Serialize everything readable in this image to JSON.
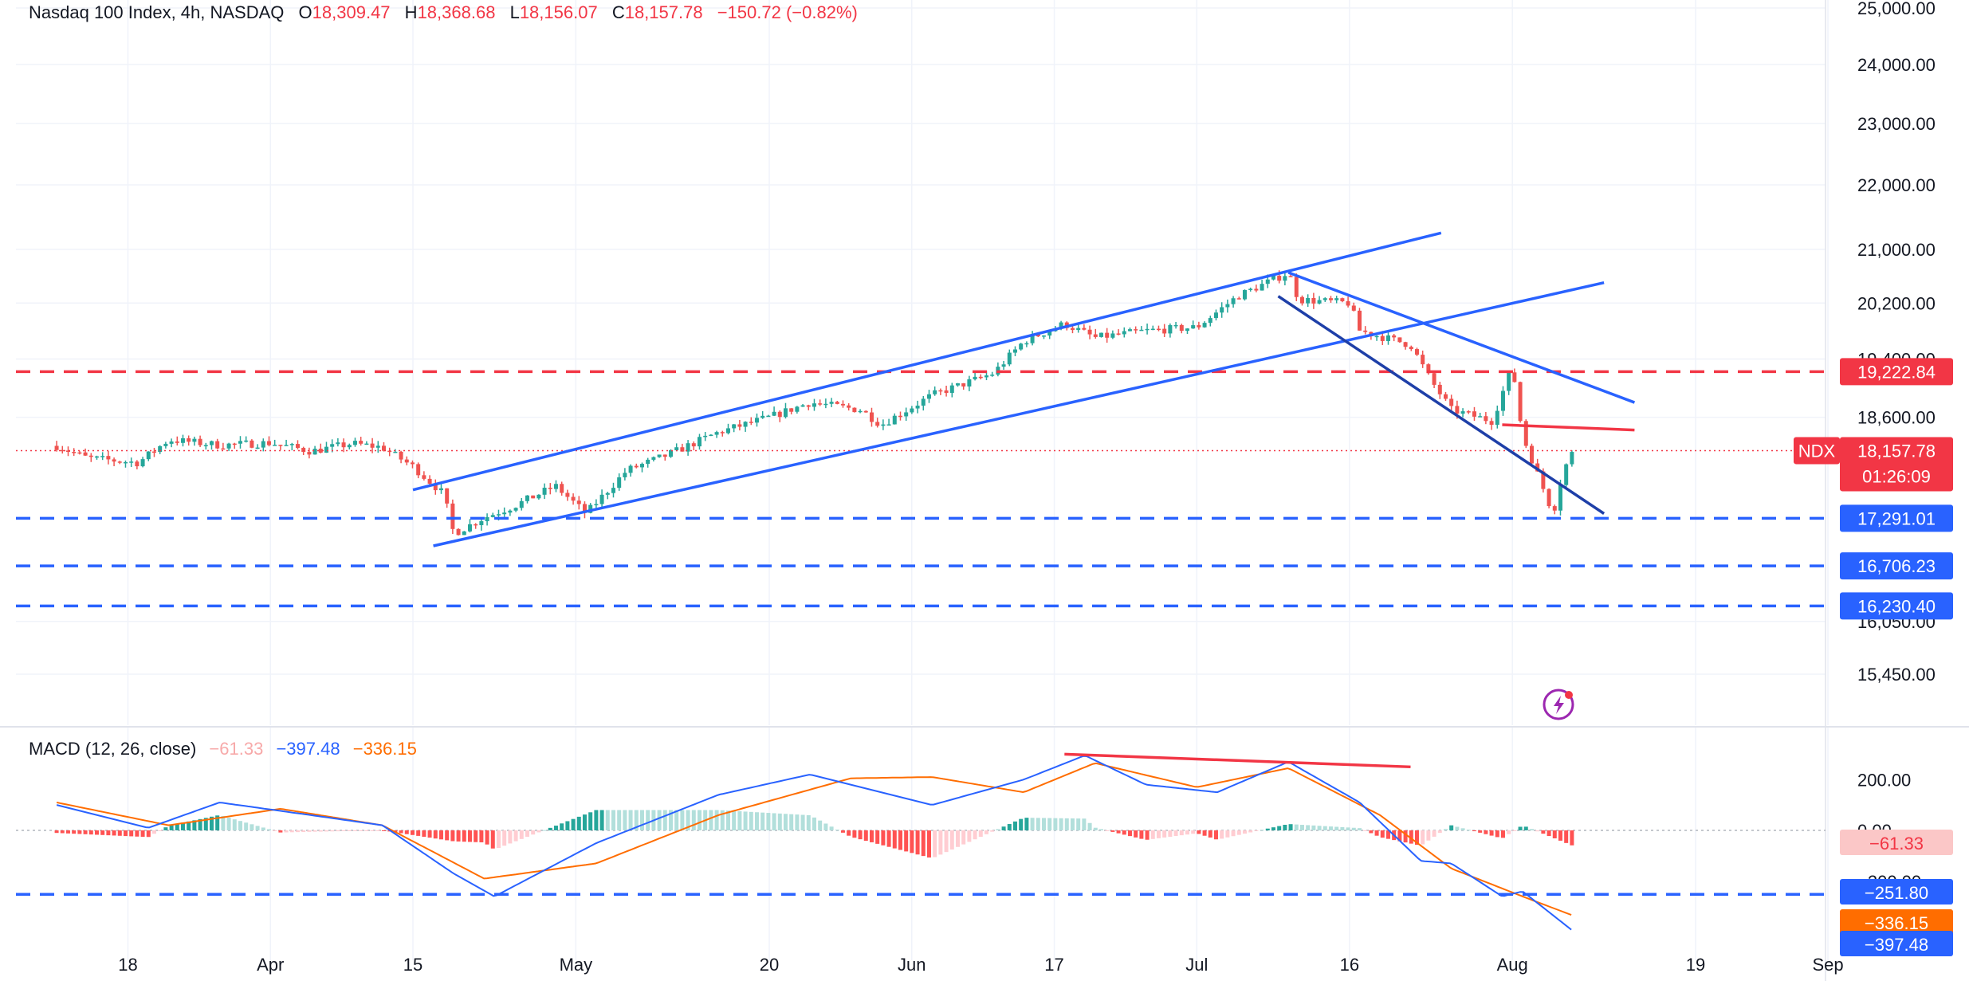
{
  "header": {
    "symbol": "Nasdaq 100 Index, 4h, NASDAQ",
    "open_label": "O",
    "open": "18,309.47",
    "high_label": "H",
    "high": "18,368.68",
    "low_label": "L",
    "low": "18,156.07",
    "close_label": "C",
    "close": "18,157.78",
    "change": "−150.72 (−0.82%)"
  },
  "macd_header": {
    "title": "MACD (12, 26, close)",
    "histogram": "−61.33",
    "macd": "−397.48",
    "signal": "−336.15"
  },
  "colors": {
    "up": "#26a69a",
    "down": "#ef5350",
    "trend": "#2962ff",
    "trend_dark": "#1e3fa8",
    "resistance": "#f23645",
    "support": "#2962ff",
    "signal": "#ff6d00"
  },
  "chart_data": [
    {
      "type": "candlestick",
      "symbol": "NDX",
      "timeframe": "4h",
      "y_scale": "log",
      "ylim": [
        15150,
        25000
      ],
      "y_ticks": [
        {
          "value": 25000,
          "label": "25,000.00"
        },
        {
          "value": 24000,
          "label": "24,000.00"
        },
        {
          "value": 23000,
          "label": "23,000.00"
        },
        {
          "value": 22000,
          "label": "22,000.00"
        },
        {
          "value": 21000,
          "label": "21,000.00"
        },
        {
          "value": 20200,
          "label": "20,200.00"
        },
        {
          "value": 19400,
          "label": "19,400.00"
        },
        {
          "value": 18600,
          "label": "18,600.00"
        },
        {
          "value": 16050,
          "label": "16,050.00"
        },
        {
          "value": 15450,
          "label": "15,450.00"
        }
      ],
      "x_ticks": [
        "18",
        "Apr",
        "15",
        "May",
        "20",
        "Jun",
        "17",
        "Jul",
        "16",
        "Aug",
        "19",
        "Sep"
      ],
      "price_path": [
        {
          "date": "2024-03-11",
          "close": 18220
        },
        {
          "date": "2024-03-14",
          "close": 18060
        },
        {
          "date": "2024-03-19",
          "close": 18000
        },
        {
          "date": "2024-03-22",
          "close": 18300
        },
        {
          "date": "2024-03-27",
          "close": 18230
        },
        {
          "date": "2024-04-01",
          "close": 18260
        },
        {
          "date": "2024-04-05",
          "close": 18150
        },
        {
          "date": "2024-04-09",
          "close": 18250
        },
        {
          "date": "2024-04-12",
          "close": 18200
        },
        {
          "date": "2024-04-15",
          "close": 17950
        },
        {
          "date": "2024-04-18",
          "close": 17600
        },
        {
          "date": "2024-04-19",
          "close": 17100
        },
        {
          "date": "2024-04-22",
          "close": 17300
        },
        {
          "date": "2024-04-25",
          "close": 17450
        },
        {
          "date": "2024-04-29",
          "close": 17700
        },
        {
          "date": "2024-05-02",
          "close": 17350
        },
        {
          "date": "2024-05-06",
          "close": 17900
        },
        {
          "date": "2024-05-10",
          "close": 18100
        },
        {
          "date": "2024-05-15",
          "close": 18400
        },
        {
          "date": "2024-05-20",
          "close": 18600
        },
        {
          "date": "2024-05-24",
          "close": 18800
        },
        {
          "date": "2024-05-29",
          "close": 18700
        },
        {
          "date": "2024-05-31",
          "close": 18500
        },
        {
          "date": "2024-06-05",
          "close": 18900
        },
        {
          "date": "2024-06-11",
          "close": 19200
        },
        {
          "date": "2024-06-14",
          "close": 19650
        },
        {
          "date": "2024-06-18",
          "close": 19900
        },
        {
          "date": "2024-06-21",
          "close": 19700
        },
        {
          "date": "2024-06-26",
          "close": 19800
        },
        {
          "date": "2024-07-01",
          "close": 19850
        },
        {
          "date": "2024-07-05",
          "close": 20300
        },
        {
          "date": "2024-07-10",
          "close": 20650
        },
        {
          "date": "2024-07-11",
          "close": 20250
        },
        {
          "date": "2024-07-16",
          "close": 20200
        },
        {
          "date": "2024-07-17",
          "close": 19800
        },
        {
          "date": "2024-07-22",
          "close": 19600
        },
        {
          "date": "2024-07-24",
          "close": 19100
        },
        {
          "date": "2024-07-26",
          "close": 18700
        },
        {
          "date": "2024-07-30",
          "close": 18550
        },
        {
          "date": "2024-08-01",
          "close": 19300
        },
        {
          "date": "2024-08-02",
          "close": 18350
        },
        {
          "date": "2024-08-05",
          "close": 17350
        },
        {
          "date": "2024-08-06",
          "close": 17900
        },
        {
          "date": "2024-08-07",
          "close": 18157.78
        }
      ],
      "levels": [
        {
          "value": 19222.84,
          "label": "19,222.84",
          "style": "dashed",
          "color": "#f23645"
        },
        {
          "value": 17291.01,
          "label": "17,291.01",
          "style": "dashed",
          "color": "#2962ff"
        },
        {
          "value": 16706.23,
          "label": "16,706.23",
          "style": "dashed",
          "color": "#2962ff"
        },
        {
          "value": 16230.4,
          "label": "16,230.40",
          "style": "dashed",
          "color": "#2962ff"
        }
      ],
      "last_price": {
        "ticker": "NDX",
        "value": 18157.78,
        "label": "18,157.78",
        "countdown": "01:26:09"
      },
      "trendlines": [
        {
          "name": "channel-upper",
          "from": {
            "date": "2024-04-15",
            "price": 17650
          },
          "to": {
            "date": "2024-07-25",
            "price": 21250
          },
          "color": "#2962ff"
        },
        {
          "name": "channel-lower",
          "from": {
            "date": "2024-04-17",
            "price": 16950
          },
          "to": {
            "date": "2024-08-10",
            "price": 20500
          },
          "color": "#2962ff"
        },
        {
          "name": "down-channel-upper",
          "from": {
            "date": "2024-07-10",
            "price": 20650
          },
          "to": {
            "date": "2024-08-13",
            "price": 18800
          },
          "color": "#2962ff"
        },
        {
          "name": "down-channel-lower",
          "from": {
            "date": "2024-07-09",
            "price": 20300
          },
          "to": {
            "date": "2024-08-10",
            "price": 17350
          },
          "color": "#1e3fa8"
        },
        {
          "name": "resistance-short",
          "from": {
            "date": "2024-07-31",
            "price": 18500
          },
          "to": {
            "date": "2024-08-13",
            "price": 18430
          },
          "color": "#f23645"
        }
      ]
    },
    {
      "type": "macd",
      "params": "12, 26, close",
      "ylim": [
        -480,
        320
      ],
      "y_ticks": [
        {
          "value": 200,
          "label": "200.00"
        },
        {
          "value": 0,
          "label": "0.00"
        },
        {
          "value": -200,
          "label": "−200.00"
        }
      ],
      "macd_line": [
        {
          "date": "2024-03-11",
          "value": 100
        },
        {
          "date": "2024-03-20",
          "value": 10
        },
        {
          "date": "2024-03-27",
          "value": 110
        },
        {
          "date": "2024-04-05",
          "value": 60
        },
        {
          "date": "2024-04-12",
          "value": 20
        },
        {
          "date": "2024-04-19",
          "value": -170
        },
        {
          "date": "2024-04-23",
          "value": -260
        },
        {
          "date": "2024-05-03",
          "value": -50
        },
        {
          "date": "2024-05-15",
          "value": 140
        },
        {
          "date": "2024-05-24",
          "value": 220
        },
        {
          "date": "2024-06-05",
          "value": 100
        },
        {
          "date": "2024-06-14",
          "value": 200
        },
        {
          "date": "2024-06-20",
          "value": 295
        },
        {
          "date": "2024-06-26",
          "value": 180
        },
        {
          "date": "2024-07-03",
          "value": 150
        },
        {
          "date": "2024-07-10",
          "value": 270
        },
        {
          "date": "2024-07-17",
          "value": 110
        },
        {
          "date": "2024-07-23",
          "value": -120
        },
        {
          "date": "2024-07-26",
          "value": -130
        },
        {
          "date": "2024-07-31",
          "value": -260
        },
        {
          "date": "2024-08-02",
          "value": -240
        },
        {
          "date": "2024-08-07",
          "value": -397.48
        }
      ],
      "signal_line": [
        {
          "date": "2024-03-11",
          "value": 110
        },
        {
          "date": "2024-03-22",
          "value": 20
        },
        {
          "date": "2024-04-02",
          "value": 85
        },
        {
          "date": "2024-04-12",
          "value": 20
        },
        {
          "date": "2024-04-22",
          "value": -190
        },
        {
          "date": "2024-05-03",
          "value": -130
        },
        {
          "date": "2024-05-15",
          "value": 60
        },
        {
          "date": "2024-05-28",
          "value": 205
        },
        {
          "date": "2024-06-05",
          "value": 210
        },
        {
          "date": "2024-06-14",
          "value": 150
        },
        {
          "date": "2024-06-21",
          "value": 265
        },
        {
          "date": "2024-07-01",
          "value": 170
        },
        {
          "date": "2024-07-10",
          "value": 245
        },
        {
          "date": "2024-07-19",
          "value": 60
        },
        {
          "date": "2024-07-26",
          "value": -150
        },
        {
          "date": "2024-08-02",
          "value": -260
        },
        {
          "date": "2024-08-07",
          "value": -336.15
        }
      ],
      "histogram_last": -61.33,
      "levels": [
        {
          "value": -251.8,
          "label": "−251.80",
          "style": "dashed",
          "color": "#2962ff"
        }
      ],
      "divergence_line": {
        "from": {
          "date": "2024-06-18",
          "value": 300
        },
        "to": {
          "date": "2024-07-22",
          "value": 250
        },
        "color": "#f23645"
      },
      "price_labels": [
        {
          "label": "−61.33",
          "color": "#fbc7c7",
          "text_color": "#f23645"
        },
        {
          "label": "−251.80",
          "color": "#2962ff",
          "text_color": "#ffffff"
        },
        {
          "label": "−336.15",
          "color": "#ff6d00",
          "text_color": "#ffffff"
        },
        {
          "label": "−397.48",
          "color": "#2962ff",
          "text_color": "#ffffff"
        }
      ]
    }
  ]
}
